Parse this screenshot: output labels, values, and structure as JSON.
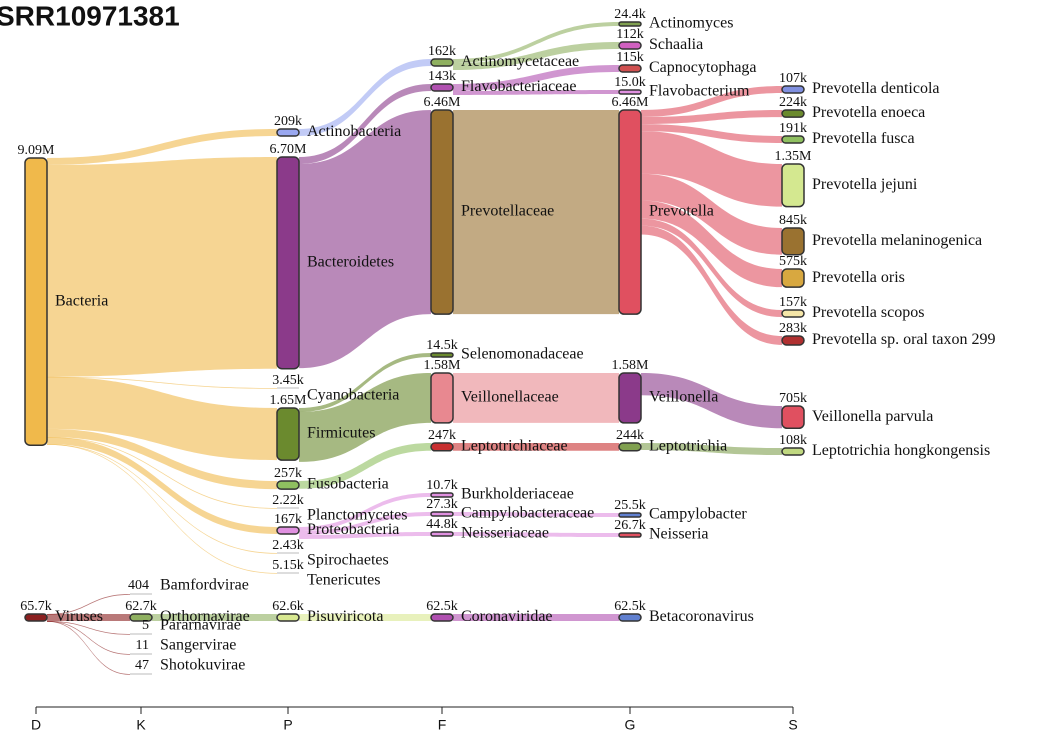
{
  "chart_data": {
    "type": "sankey",
    "title": "SRR10971381",
    "levels": [
      "D",
      "K",
      "P",
      "F",
      "G",
      "S"
    ],
    "nodes": [
      {
        "name": "Bacteria",
        "level": "D",
        "value": 9090000,
        "value_label": "9.09M",
        "color": "#f0b94b"
      },
      {
        "name": "Viruses",
        "level": "D",
        "value": 65700,
        "value_label": "65.7k",
        "color": "#8b2020"
      },
      {
        "name": "Bamfordvirae",
        "level": "K",
        "parent": 1,
        "value": 404,
        "color": "#999999"
      },
      {
        "name": "Orthornavirae",
        "level": "K",
        "parent": 1,
        "value": 62700,
        "value_label": "62.7k",
        "color": "#8fb060"
      },
      {
        "name": "Pararnavirae",
        "level": "K",
        "parent": 1,
        "value": 5,
        "color": "#999999"
      },
      {
        "name": "Sangervirae",
        "level": "K",
        "parent": 1,
        "value": 11,
        "color": "#999999"
      },
      {
        "name": "Shotokuvirae",
        "level": "K",
        "parent": 1,
        "value": 47,
        "color": "#999999"
      },
      {
        "name": "Actinobacteria",
        "level": "P",
        "parent": 0,
        "value": 209000,
        "value_label": "209k",
        "color": "#9aa8f0"
      },
      {
        "name": "Bacteroidetes",
        "level": "P",
        "parent": 0,
        "value": 6700000,
        "value_label": "6.70M",
        "color": "#8b3a8a"
      },
      {
        "name": "Cyanobacteria",
        "level": "P",
        "parent": 0,
        "value": 3450,
        "value_label": "3.45k",
        "color": "#f0b94b"
      },
      {
        "name": "Firmicutes",
        "level": "P",
        "parent": 0,
        "value": 1650000,
        "value_label": "1.65M",
        "color": "#6b8a2e"
      },
      {
        "name": "Fusobacteria",
        "level": "P",
        "parent": 0,
        "value": 257000,
        "value_label": "257k",
        "color": "#8fc060"
      },
      {
        "name": "Planctomycetes",
        "level": "P",
        "parent": 0,
        "value": 2220,
        "value_label": "2.22k",
        "color": "#f0b94b"
      },
      {
        "name": "Proteobacteria",
        "level": "P",
        "parent": 0,
        "value": 167000,
        "value_label": "167k",
        "color": "#e090e0"
      },
      {
        "name": "Spirochaetes",
        "level": "P",
        "parent": 0,
        "value": 2430,
        "value_label": "2.43k",
        "color": "#f0b94b"
      },
      {
        "name": "Tenericutes",
        "level": "P",
        "parent": 0,
        "value": 5150,
        "value_label": "5.15k",
        "color": "#f0b94b"
      },
      {
        "name": "Pisuviricota",
        "level": "P",
        "parent": 3,
        "value": 62600,
        "value_label": "62.6k",
        "color": "#d8e890"
      },
      {
        "name": "Actinomycetaceae",
        "level": "F",
        "parent": 7,
        "value": 162000,
        "value_label": "162k",
        "color": "#8fb060"
      },
      {
        "name": "Flavobacteriaceae",
        "level": "F",
        "parent": 8,
        "value": 143000,
        "value_label": "143k",
        "color": "#b050b0"
      },
      {
        "name": "Prevotellaceae",
        "level": "F",
        "parent": 8,
        "value": 6460000,
        "value_label": "6.46M",
        "color": "#9a7230"
      },
      {
        "name": "Selenomonadaceae",
        "level": "F",
        "parent": 10,
        "value": 14500,
        "value_label": "14.5k",
        "color": "#6b8a2e"
      },
      {
        "name": "Veillonellaceae",
        "level": "F",
        "parent": 10,
        "value": 1580000,
        "value_label": "1.58M",
        "color": "#e88890"
      },
      {
        "name": "Leptotrichiaceae",
        "level": "F",
        "parent": 11,
        "value": 247000,
        "value_label": "247k",
        "color": "#c83030"
      },
      {
        "name": "Burkholderiaceae",
        "level": "F",
        "parent": 13,
        "value": 10700,
        "value_label": "10.7k",
        "color": "#e090e0"
      },
      {
        "name": "Campylobacteraceae",
        "level": "F",
        "parent": 13,
        "value": 27300,
        "value_label": "27.3k",
        "color": "#e090e0"
      },
      {
        "name": "Neisseriaceae",
        "level": "F",
        "parent": 13,
        "value": 44800,
        "value_label": "44.8k",
        "color": "#e090e0"
      },
      {
        "name": "Coronaviridae",
        "level": "F",
        "parent": 16,
        "value": 62500,
        "value_label": "62.5k",
        "color": "#b050b0"
      },
      {
        "name": "Actinomyces",
        "level": "G",
        "parent": 17,
        "value": 24400,
        "value_label": "24.4k",
        "color": "#80a050"
      },
      {
        "name": "Schaalia",
        "level": "G",
        "parent": 17,
        "value": 112000,
        "value_label": "112k",
        "color": "#d060c0"
      },
      {
        "name": "Capnocytophaga",
        "level": "G",
        "parent": 18,
        "value": 115000,
        "value_label": "115k",
        "color": "#d05050"
      },
      {
        "name": "Flavobacterium",
        "level": "G",
        "parent": 18,
        "value": 15000,
        "value_label": "15.0k",
        "color": "#e090e0"
      },
      {
        "name": "Prevotella",
        "level": "G",
        "parent": 19,
        "value": 6460000,
        "value_label": "6.46M",
        "color": "#e05060"
      },
      {
        "name": "Veillonella",
        "level": "G",
        "parent": 21,
        "value": 1580000,
        "value_label": "1.58M",
        "color": "#8b3a8a"
      },
      {
        "name": "Leptotrichia",
        "level": "G",
        "parent": 22,
        "value": 244000,
        "value_label": "244k",
        "color": "#80a050"
      },
      {
        "name": "Campylobacter",
        "level": "G",
        "parent": 24,
        "value": 25500,
        "value_label": "25.5k",
        "color": "#6080d0"
      },
      {
        "name": "Neisseria",
        "level": "G",
        "parent": 25,
        "value": 26700,
        "value_label": "26.7k",
        "color": "#e05060"
      },
      {
        "name": "Betacoronavirus",
        "level": "G",
        "parent": 26,
        "value": 62500,
        "value_label": "62.5k",
        "color": "#6080d0"
      },
      {
        "name": "Prevotella denticola",
        "level": "S",
        "parent": 31,
        "value": 107000,
        "value_label": "107k",
        "color": "#8090e0"
      },
      {
        "name": "Prevotella enoeca",
        "level": "S",
        "parent": 31,
        "value": 224000,
        "value_label": "224k",
        "color": "#6b8a2e"
      },
      {
        "name": "Prevotella fusca",
        "level": "S",
        "parent": 31,
        "value": 191000,
        "value_label": "191k",
        "color": "#8fc060"
      },
      {
        "name": "Prevotella jejuni",
        "level": "S",
        "parent": 31,
        "value": 1350000,
        "value_label": "1.35M",
        "color": "#d4e890"
      },
      {
        "name": "Prevotella melaninogenica",
        "level": "S",
        "parent": 31,
        "value": 845000,
        "value_label": "845k",
        "color": "#9a7230"
      },
      {
        "name": "Prevotella oris",
        "level": "S",
        "parent": 31,
        "value": 575000,
        "value_label": "575k",
        "color": "#d8a840"
      },
      {
        "name": "Prevotella scopos",
        "level": "S",
        "parent": 31,
        "value": 157000,
        "value_label": "157k",
        "color": "#f5e6a8"
      },
      {
        "name": "Prevotella sp. oral taxon 299",
        "level": "S",
        "parent": 31,
        "value": 283000,
        "value_label": "283k",
        "color": "#b03030"
      },
      {
        "name": "Veillonella parvula",
        "level": "S",
        "parent": 32,
        "value": 705000,
        "value_label": "705k",
        "color": "#e05060"
      },
      {
        "name": "Leptotrichia hongkongensis",
        "level": "S",
        "parent": 33,
        "value": 108000,
        "value_label": "108k",
        "color": "#c0d880"
      }
    ]
  }
}
